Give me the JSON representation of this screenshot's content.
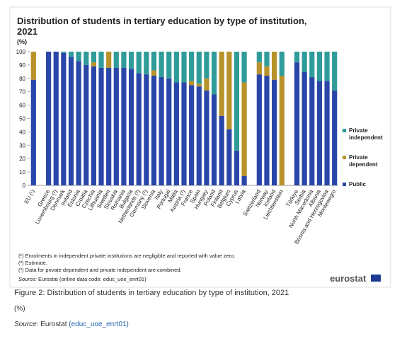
{
  "chart_data": {
    "type": "stacked_bar",
    "title": "Distribution of students in tertiary education by type of institution, 2021",
    "subtitle": "(%)",
    "categories": [
      "EU (¹)",
      null,
      "Greece",
      "Luxembourg (²)",
      "Denmark",
      "Ireland",
      "Estonia",
      "Croatia",
      "Czechia",
      "Lithuania",
      "Sweden",
      "Slovakia",
      "Romania",
      "Bulgaria",
      "Netherlands (³)",
      "Germany (²)",
      "Slovenia",
      "Italy",
      "Portugal",
      "Malta",
      "Austria (²)",
      "France",
      "Spain",
      "Hungary",
      "Poland",
      "Finland",
      "Belgium",
      "Cyprus",
      "Latvia",
      null,
      "Switzerland",
      "Norway",
      "Iceland",
      "Liechtenstein",
      null,
      "Türkiye",
      "Serbia",
      "North Macedonia",
      "Albania",
      "Bosnia and Herzegovina",
      "Montenegro"
    ],
    "series": [
      {
        "name": "Public",
        "color": "#2a46a8",
        "values": [
          79,
          null,
          100,
          100,
          99,
          96,
          93,
          90,
          89,
          88,
          88,
          88,
          88,
          87,
          84,
          83,
          82,
          81,
          80,
          77,
          77,
          75,
          74,
          71,
          68,
          52,
          42,
          26,
          7,
          null,
          83,
          82,
          79,
          0,
          null,
          92,
          85,
          81,
          78,
          78,
          71
        ]
      },
      {
        "name": "Private dependent",
        "color": "#b8922a",
        "values": [
          21,
          null,
          0,
          0,
          0,
          0,
          0,
          0,
          3,
          0,
          12,
          0,
          0,
          0,
          0,
          0,
          4,
          0,
          0,
          0,
          0,
          3,
          2,
          9,
          0,
          48,
          58,
          0,
          70,
          null,
          9,
          7,
          21,
          82,
          null,
          0,
          0,
          0,
          0,
          0,
          0
        ]
      },
      {
        "name": "Private independent",
        "color": "#2f9c9a",
        "values": [
          0,
          null,
          0,
          0,
          1,
          4,
          7,
          10,
          8,
          12,
          0,
          12,
          12,
          13,
          16,
          17,
          14,
          19,
          20,
          23,
          23,
          22,
          24,
          20,
          32,
          0,
          0,
          74,
          23,
          null,
          8,
          11,
          0,
          18,
          null,
          8,
          15,
          19,
          22,
          22,
          29
        ]
      }
    ],
    "ylim": [
      0,
      100
    ],
    "yticks": [
      0,
      10,
      20,
      30,
      40,
      50,
      60,
      70,
      80,
      90,
      100
    ],
    "grid": false,
    "legend": "right",
    "footnotes": [
      "(¹) Enrolments in independent private institutions are negligible and reported with value zero.",
      "(²) Estimate.",
      "(³) Data for private dependent and private independent are combined."
    ],
    "source_label": "Source:",
    "source_text": "Eurostat (online data code: educ_uoe_enrt01)",
    "logo": "eurostat"
  },
  "caption": {
    "title": "Figure 2: Distribution of students in tertiary education by type of institution, 2021",
    "unit": "(%)",
    "source_label": "Source:",
    "source_text": "Eurostat",
    "source_link": "(educ_uoe_enrt01)"
  }
}
